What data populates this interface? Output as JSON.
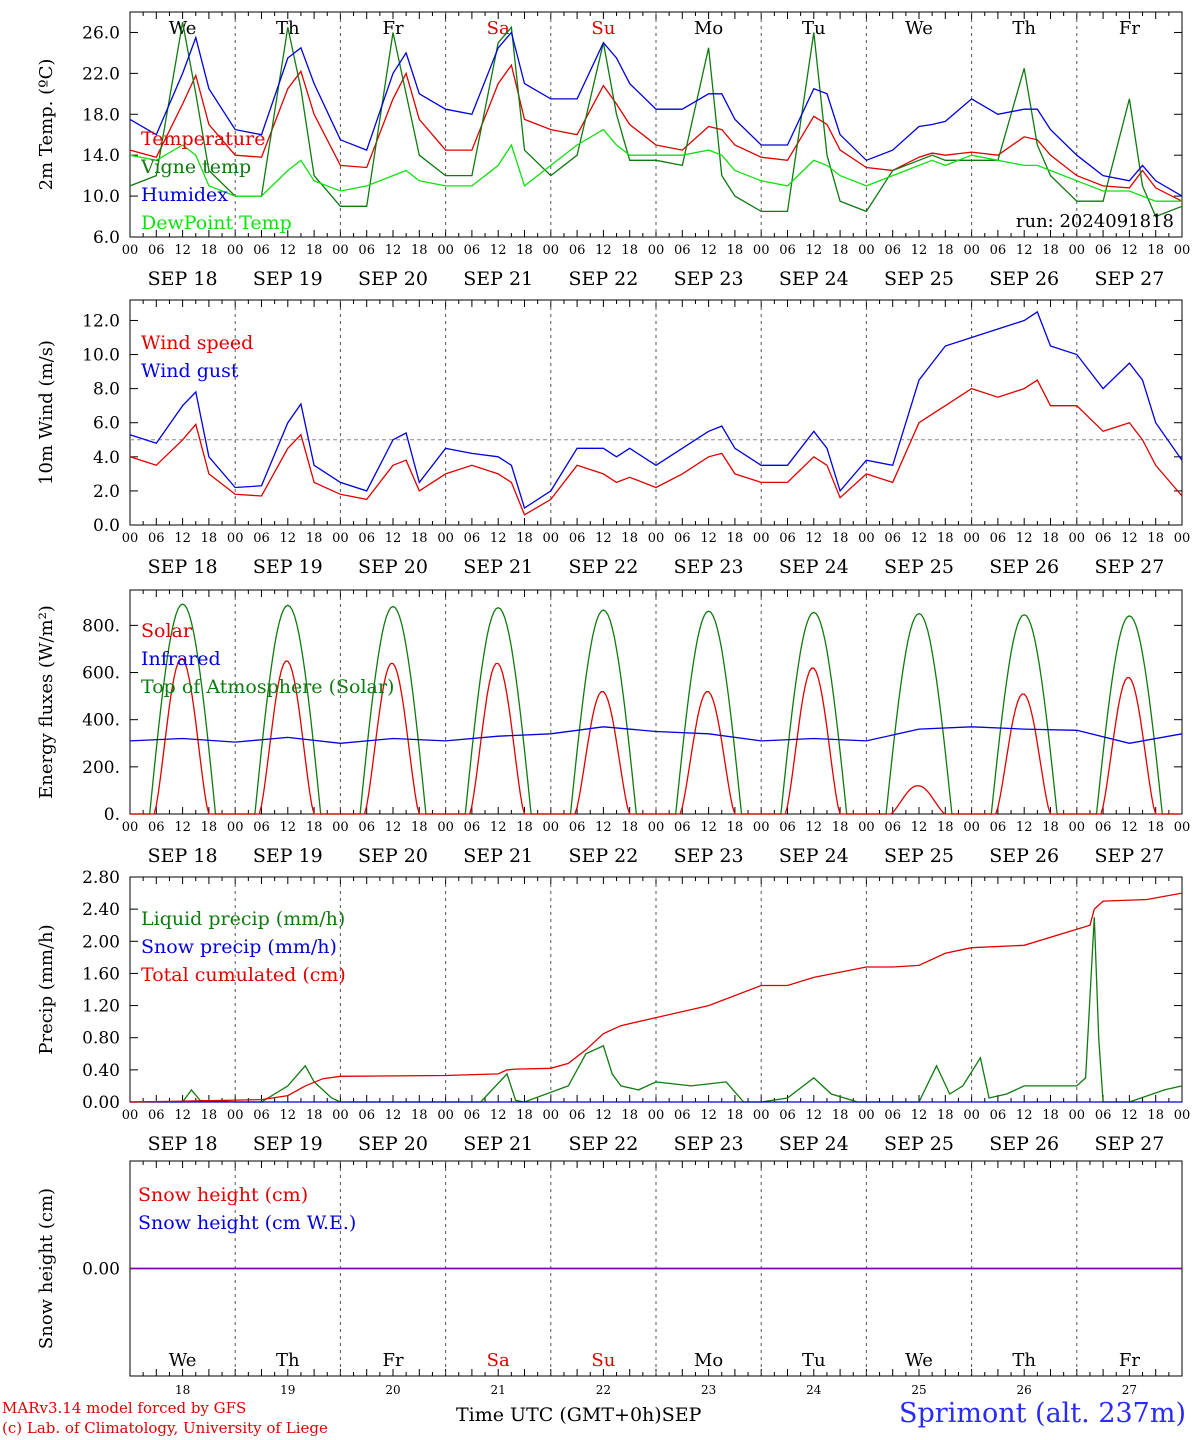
{
  "footer": {
    "credit_line1": "MARv3.14 model forced by GFS",
    "credit_line2": "(c) Lab. of Climatology, University of Liege",
    "time_axis_label": "Time UTC (GMT+0h)",
    "month_label": "SEP",
    "station": "Sprimont (alt. 237m)"
  },
  "colors": {
    "red": "#e00000",
    "blue": "#0000e0",
    "dark_green": "#107a10",
    "light_green": "#10e010",
    "purple": "#8000a0",
    "weekend": "#e00000"
  },
  "chart_data": [
    {
      "type": "line",
      "ylabel": "2m Temp. (ºC)",
      "yticks": [
        "6.0",
        "10.0",
        "14.0",
        "18.0",
        "22.0",
        "26.0"
      ],
      "ylim": [
        6,
        28
      ],
      "annotation": "run: 2024091818",
      "days": [
        "We",
        "Th",
        "Fr",
        "Sa",
        "Su",
        "Mo",
        "Tu",
        "We",
        "Th",
        "Fr"
      ],
      "x_hour_labels": [
        "00",
        "06",
        "12",
        "18"
      ],
      "date_labels": [
        "SEP 18",
        "SEP 19",
        "SEP 20",
        "SEP 21",
        "SEP 22",
        "SEP 23",
        "SEP 24",
        "SEP 25",
        "SEP 26",
        "SEP 27"
      ],
      "x_hours": [
        0,
        6,
        12,
        15,
        18,
        24,
        30,
        36,
        39,
        42,
        48,
        54,
        60,
        63,
        66,
        72,
        78,
        84,
        87,
        90,
        96,
        102,
        108,
        111,
        114,
        120,
        126,
        132,
        135,
        138,
        144,
        150,
        156,
        159,
        162,
        168,
        174,
        180,
        183,
        186,
        192,
        198,
        204,
        207,
        210,
        216,
        222,
        228,
        231,
        234,
        240
      ],
      "series": [
        {
          "name": "Temperature",
          "color": "#e00000",
          "values": [
            14.5,
            13.8,
            19.0,
            21.8,
            17.0,
            14.0,
            13.8,
            20.5,
            22.2,
            18.0,
            13.0,
            12.8,
            19.5,
            22.0,
            17.5,
            14.5,
            14.5,
            21.0,
            22.8,
            17.5,
            16.5,
            16.0,
            20.8,
            19.0,
            17.0,
            15.0,
            14.5,
            16.8,
            16.5,
            15.0,
            13.8,
            13.5,
            17.8,
            17.0,
            14.5,
            12.8,
            12.5,
            13.8,
            14.2,
            14.0,
            14.3,
            14.0,
            15.8,
            15.5,
            14.0,
            12.0,
            11.0,
            10.8,
            12.5,
            10.8,
            9.5
          ]
        },
        {
          "name": "Vigne temp",
          "color": "#107a10",
          "values": [
            11.0,
            12.0,
            27.0,
            20.0,
            12.5,
            10.0,
            10.0,
            26.5,
            20.5,
            12.0,
            9.0,
            9.0,
            26.0,
            20.0,
            14.0,
            12.0,
            12.0,
            25.0,
            26.5,
            14.5,
            12.0,
            14.0,
            25.0,
            18.0,
            13.5,
            13.5,
            13.0,
            24.5,
            12.0,
            10.0,
            8.5,
            8.5,
            26.0,
            14.0,
            9.5,
            8.5,
            12.5,
            13.5,
            14.0,
            13.5,
            13.5,
            13.5,
            22.5,
            15.0,
            12.0,
            9.5,
            9.5,
            19.5,
            11.0,
            8.0,
            9.0
          ]
        },
        {
          "name": "Humidex",
          "color": "#0000e0",
          "values": [
            17.5,
            16.0,
            22.0,
            25.5,
            20.5,
            16.5,
            16.0,
            23.5,
            24.5,
            21.0,
            15.5,
            14.5,
            22.0,
            24.0,
            20.0,
            18.5,
            18.0,
            24.5,
            26.0,
            21.0,
            19.5,
            19.5,
            25.0,
            23.5,
            21.0,
            18.5,
            18.5,
            20.0,
            20.0,
            17.5,
            15.0,
            15.0,
            20.5,
            20.0,
            16.0,
            13.5,
            14.5,
            16.8,
            17.0,
            17.3,
            19.5,
            18.0,
            18.5,
            18.5,
            16.5,
            14.0,
            12.0,
            11.5,
            13.0,
            11.5,
            10.0
          ]
        },
        {
          "name": "DewPoint Temp",
          "color": "#10e010",
          "values": [
            14.0,
            13.5,
            15.0,
            14.0,
            11.0,
            10.0,
            10.0,
            12.5,
            13.5,
            11.5,
            10.5,
            11.0,
            12.0,
            12.5,
            11.5,
            11.0,
            11.0,
            13.0,
            15.0,
            11.0,
            13.0,
            15.0,
            16.5,
            15.0,
            14.0,
            14.0,
            14.0,
            14.5,
            14.0,
            12.5,
            11.5,
            11.0,
            13.5,
            13.0,
            12.0,
            11.0,
            12.0,
            13.0,
            13.5,
            13.0,
            14.0,
            13.5,
            13.0,
            13.0,
            12.5,
            11.5,
            10.5,
            10.5,
            10.0,
            9.5,
            9.5
          ]
        }
      ]
    },
    {
      "type": "line",
      "ylabel": "10m Wind (m/s)",
      "yticks": [
        "0.0",
        "2.0",
        "4.0",
        "6.0",
        "8.0",
        "10.0",
        "12.0"
      ],
      "ylim": [
        0,
        13.2
      ],
      "reference_line": 5.0,
      "days": [
        "We",
        "Th",
        "Fr",
        "Sa",
        "Su",
        "Mo",
        "Tu",
        "We",
        "Th",
        "Fr"
      ],
      "x_hour_labels": [
        "00",
        "06",
        "12",
        "18"
      ],
      "date_labels": [
        "SEP 18",
        "SEP 19",
        "SEP 20",
        "SEP 21",
        "SEP 22",
        "SEP 23",
        "SEP 24",
        "SEP 25",
        "SEP 26",
        "SEP 27"
      ],
      "x_hours": [
        0,
        6,
        12,
        15,
        18,
        24,
        30,
        36,
        39,
        42,
        48,
        54,
        60,
        63,
        66,
        72,
        78,
        84,
        87,
        90,
        96,
        102,
        108,
        111,
        114,
        120,
        126,
        132,
        135,
        138,
        144,
        150,
        156,
        159,
        162,
        168,
        174,
        180,
        183,
        186,
        192,
        198,
        204,
        207,
        210,
        216,
        222,
        228,
        231,
        234,
        240
      ],
      "series": [
        {
          "name": "Wind speed",
          "color": "#e00000",
          "values": [
            4.0,
            3.5,
            5.0,
            5.9,
            3.0,
            1.8,
            1.7,
            4.5,
            5.3,
            2.5,
            1.8,
            1.5,
            3.5,
            3.8,
            2.0,
            3.0,
            3.5,
            3.0,
            2.5,
            0.6,
            1.5,
            3.5,
            3.0,
            2.5,
            2.8,
            2.2,
            3.0,
            4.0,
            4.2,
            3.0,
            2.5,
            2.5,
            4.0,
            3.5,
            1.6,
            3.0,
            2.5,
            6.0,
            6.5,
            7.0,
            8.0,
            7.5,
            8.0,
            8.5,
            7.0,
            7.0,
            5.5,
            6.0,
            5.0,
            3.5,
            1.7
          ]
        },
        {
          "name": "Wind gust",
          "color": "#0000e0",
          "values": [
            5.3,
            4.8,
            7.0,
            7.8,
            4.0,
            2.2,
            2.3,
            6.0,
            7.1,
            3.5,
            2.5,
            2.0,
            5.0,
            5.4,
            2.5,
            4.5,
            4.2,
            4.0,
            3.5,
            1.0,
            2.0,
            4.5,
            4.5,
            4.0,
            4.5,
            3.5,
            4.5,
            5.5,
            5.8,
            4.5,
            3.5,
            3.5,
            5.5,
            4.5,
            2.0,
            3.8,
            3.5,
            8.5,
            9.5,
            10.5,
            11.0,
            11.5,
            12.0,
            12.5,
            10.5,
            10.0,
            8.0,
            9.5,
            8.5,
            6.0,
            3.8
          ]
        }
      ]
    },
    {
      "type": "line",
      "ylabel": "Energy fluxes (W/m²)",
      "yticks": [
        "0.",
        "200.",
        "400.",
        "600.",
        "800."
      ],
      "ylim": [
        0,
        950
      ],
      "days": [
        "We",
        "Th",
        "Fr",
        "Sa",
        "Su",
        "Mo",
        "Tu",
        "We",
        "Th",
        "Fr"
      ],
      "x_hour_labels": [
        "00",
        "06",
        "12",
        "18"
      ],
      "date_labels": [
        "SEP 18",
        "SEP 19",
        "SEP 20",
        "SEP 21",
        "SEP 22",
        "SEP 23",
        "SEP 24",
        "SEP 25",
        "SEP 26",
        "SEP 27"
      ],
      "toa_peaks": [
        890,
        885,
        880,
        875,
        865,
        860,
        855,
        850,
        845,
        840
      ],
      "solar_peaks": [
        660,
        650,
        640,
        640,
        520,
        520,
        620,
        120,
        510,
        580
      ],
      "infrared_x_hours": [
        0,
        12,
        24,
        36,
        48,
        60,
        72,
        84,
        96,
        108,
        120,
        132,
        144,
        156,
        168,
        180,
        192,
        204,
        216,
        228,
        240
      ],
      "infrared_values": [
        310,
        320,
        305,
        325,
        300,
        320,
        310,
        330,
        340,
        370,
        350,
        340,
        310,
        320,
        310,
        360,
        370,
        360,
        355,
        300,
        340
      ],
      "series": [
        {
          "name": "Solar",
          "color": "#e00000"
        },
        {
          "name": "Infrared",
          "color": "#0000e0"
        },
        {
          "name": "Top of Atmosphere (Solar)",
          "color": "#107a10"
        }
      ]
    },
    {
      "type": "line",
      "ylabel": "Precip (mm/h)",
      "yticks": [
        "0.00",
        "0.40",
        "0.80",
        "1.20",
        "1.60",
        "2.00",
        "2.40",
        "2.80"
      ],
      "ylim": [
        0,
        2.8
      ],
      "days": [
        "We",
        "Th",
        "Fr",
        "Sa",
        "Su",
        "Mo",
        "Tu",
        "We",
        "Th",
        "Fr"
      ],
      "x_hour_labels": [
        "00",
        "06",
        "12",
        "18"
      ],
      "date_labels": [
        "SEP 18",
        "SEP 19",
        "SEP 20",
        "SEP 21",
        "SEP 22",
        "SEP 23",
        "SEP 24",
        "SEP 25",
        "SEP 26",
        "SEP 27"
      ],
      "series": [
        {
          "name": "Liquid precip (mm/h)",
          "color": "#107a10",
          "x_hours": [
            0,
            12,
            14,
            16,
            24,
            30,
            36,
            40,
            42,
            46,
            48,
            60,
            80,
            86,
            88,
            90,
            100,
            104,
            108,
            110,
            112,
            116,
            120,
            128,
            136,
            140,
            144,
            150,
            156,
            160,
            166,
            174,
            180,
            184,
            187,
            190,
            194,
            196,
            200,
            204,
            210,
            216,
            218,
            220,
            221,
            222,
            228,
            236,
            240
          ],
          "values": [
            0,
            0,
            0.15,
            0.02,
            0,
            0,
            0.2,
            0.45,
            0.25,
            0.05,
            0,
            0,
            0,
            0.35,
            0.02,
            0,
            0.2,
            0.6,
            0.7,
            0.35,
            0.2,
            0.15,
            0.25,
            0.2,
            0.25,
            0,
            0,
            0.05,
            0.3,
            0.1,
            0,
            0,
            0,
            0.45,
            0.1,
            0.2,
            0.55,
            0.05,
            0.1,
            0.2,
            0.2,
            0.2,
            0.3,
            2.3,
            0.8,
            0,
            0,
            0.15,
            0.2
          ]
        },
        {
          "name": "Snow precip (mm/h)",
          "color": "#0000e0",
          "x_hours": [
            0,
            240
          ],
          "values": [
            0,
            0
          ]
        },
        {
          "name": "Total cumulated (cm)",
          "color": "#e00000",
          "x_hours": [
            0,
            12,
            30,
            36,
            40,
            44,
            48,
            72,
            84,
            86,
            88,
            96,
            100,
            104,
            108,
            112,
            120,
            132,
            144,
            150,
            156,
            168,
            174,
            180,
            186,
            192,
            204,
            216,
            219,
            220,
            222,
            232,
            240
          ],
          "values": [
            0,
            0.01,
            0.03,
            0.08,
            0.2,
            0.29,
            0.32,
            0.33,
            0.35,
            0.4,
            0.41,
            0.42,
            0.48,
            0.65,
            0.85,
            0.95,
            1.05,
            1.2,
            1.45,
            1.45,
            1.55,
            1.68,
            1.68,
            1.7,
            1.85,
            1.92,
            1.95,
            2.15,
            2.2,
            2.4,
            2.5,
            2.52,
            2.6
          ]
        }
      ]
    },
    {
      "type": "line",
      "ylabel": "Snow height (cm)",
      "yticks": [
        "0.00"
      ],
      "ylim": [
        -1,
        1
      ],
      "days": [
        "We",
        "Th",
        "Fr",
        "Sa",
        "Su",
        "Mo",
        "Tu",
        "We",
        "Th",
        "Fr"
      ],
      "date_numbers": [
        "18",
        "19",
        "20",
        "21",
        "22",
        "23",
        "24",
        "25",
        "26",
        "27"
      ],
      "series": [
        {
          "name": "Snow height (cm)",
          "color": "#e00000",
          "x_hours": [
            0,
            240
          ],
          "values": [
            0,
            0
          ]
        },
        {
          "name": "Snow height (cm W.E.)",
          "color": "#0000e0",
          "x_hours": [
            0,
            240
          ],
          "values": [
            0,
            0
          ]
        }
      ]
    }
  ]
}
